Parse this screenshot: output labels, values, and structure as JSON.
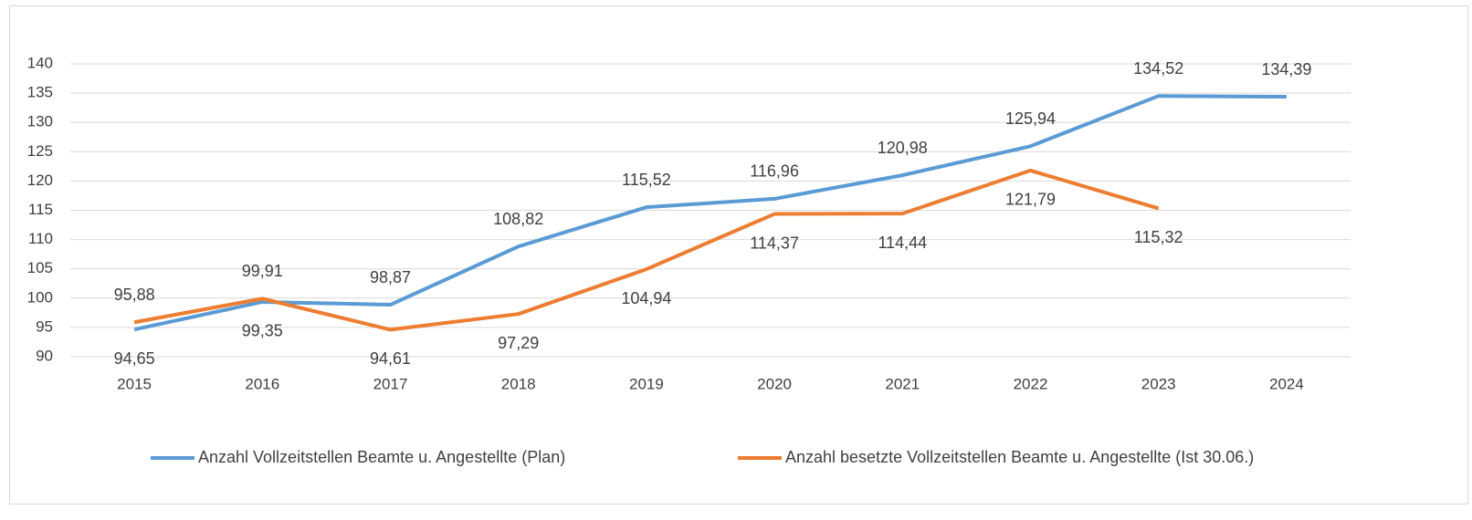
{
  "chart_data": {
    "type": "line",
    "categories": [
      "2015",
      "2016",
      "2017",
      "2018",
      "2019",
      "2020",
      "2021",
      "2022",
      "2023",
      "2024"
    ],
    "series": [
      {
        "name": "Anzahl Vollzeitstellen Beamte u. Angestellte (Plan)",
        "color": "#5b9bd5",
        "values": [
          94.65,
          99.35,
          98.87,
          108.82,
          115.52,
          116.96,
          120.98,
          125.94,
          134.52,
          134.39
        ],
        "value_labels": [
          "94,65",
          "99,35",
          "98,87",
          "108,82",
          "115,52",
          "116,96",
          "120,98",
          "125,94",
          "134,52",
          "134,39"
        ]
      },
      {
        "name": "Anzahl besetzte Vollzeitstellen Beamte u. Angestellte (Ist 30.06.)",
        "color": "#ed7d31",
        "values": [
          95.88,
          99.91,
          94.61,
          97.29,
          104.94,
          114.37,
          114.44,
          121.79,
          115.32,
          null
        ],
        "value_labels": [
          "95,88",
          "99,91",
          "94,61",
          "97,29",
          "104,94",
          "114,37",
          "114,44",
          "121,79",
          "115,32",
          null
        ]
      }
    ],
    "ylim": [
      90,
      140
    ],
    "yticks": [
      90,
      95,
      100,
      105,
      110,
      115,
      120,
      125,
      130,
      135,
      140
    ],
    "grid": true,
    "legend": "bottom"
  }
}
